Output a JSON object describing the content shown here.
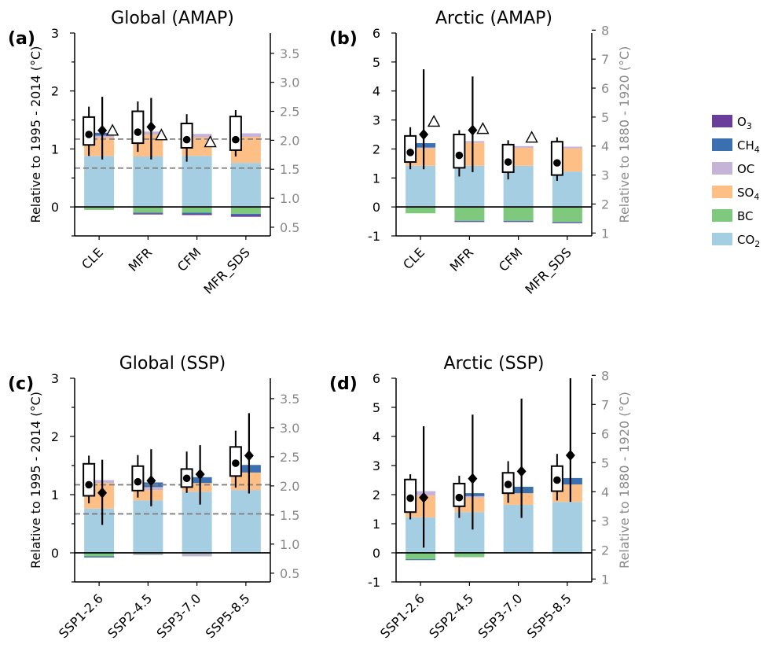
{
  "colors": {
    "O3": "#6a3d9a",
    "CH4": "#3a6fb0",
    "OC": "#c5b3d8",
    "SO4": "#fdbf86",
    "BC": "#7fc97f",
    "CO2": "#a6cee3"
  },
  "legend": [
    {
      "key": "O3",
      "base": "O",
      "sub": "3"
    },
    {
      "key": "CH4",
      "base": "CH",
      "sub": "4"
    },
    {
      "key": "OC",
      "base": "OC",
      "sub": ""
    },
    {
      "key": "SO4",
      "base": "SO",
      "sub": "4"
    },
    {
      "key": "BC",
      "base": "BC",
      "sub": ""
    },
    {
      "key": "CO2",
      "base": "CO",
      "sub": "2"
    }
  ],
  "axis_labels": {
    "left": "Relative to 1995 - 2014 (°C)",
    "right": "Relative to 1880 - 1920 (°C)"
  },
  "chart_data": [
    {
      "type": "bar",
      "panel": "(a)",
      "title": "Global (AMAP)",
      "categories": [
        "CLE",
        "MFR",
        "CFM",
        "MFR_SDS"
      ],
      "ylim": [
        -0.5,
        3.0
      ],
      "yticks": [
        0,
        1,
        2,
        3
      ],
      "y2ticks": [
        0.5,
        1.0,
        1.5,
        2.0,
        2.5,
        3.0,
        3.5
      ],
      "y2offset": 0.85,
      "hlines": [
        1.17,
        0.67
      ],
      "stack_positive": {
        "CO2": [
          0.88,
          0.87,
          0.88,
          0.76
        ],
        "SO4": [
          0.32,
          0.38,
          0.32,
          0.45
        ],
        "OC": [
          0.03,
          0.05,
          0.06,
          0.06
        ],
        "CH4": [
          0.05,
          0.0,
          0.0,
          0.0
        ]
      },
      "stack_negative": {
        "BC": [
          -0.05,
          -0.1,
          -0.1,
          -0.12
        ],
        "CH4": [
          0.0,
          -0.01,
          -0.02,
          -0.02
        ],
        "O3": [
          0.0,
          -0.02,
          -0.02,
          -0.03
        ]
      },
      "boxes": [
        {
          "whisker": [
            0.88,
            1.73
          ],
          "box": [
            1.07,
            1.55
          ],
          "mean": 1.25
        },
        {
          "whisker": [
            0.95,
            1.82
          ],
          "box": [
            1.1,
            1.65
          ],
          "mean": 1.29
        },
        {
          "whisker": [
            0.78,
            1.6
          ],
          "box": [
            1.02,
            1.44
          ],
          "mean": 1.16
        },
        {
          "whisker": [
            0.87,
            1.67
          ],
          "box": [
            0.98,
            1.56
          ],
          "mean": 1.16
        }
      ],
      "diamonds": [
        {
          "value": 1.32,
          "range": [
            0.82,
            1.9
          ]
        },
        {
          "value": 1.38,
          "range": [
            0.82,
            1.88
          ]
        },
        null,
        null
      ],
      "triangles": [
        1.32,
        1.24,
        1.12,
        null
      ]
    },
    {
      "type": "bar",
      "panel": "(b)",
      "title": "Arctic (AMAP)",
      "categories": [
        "CLE",
        "MFR",
        "CFM",
        "MFR_SDS"
      ],
      "ylim": [
        -1.0,
        6.0
      ],
      "yticks": [
        -1,
        0,
        1,
        2,
        3,
        4,
        5,
        6
      ],
      "y2ticks": [
        1,
        2,
        3,
        4,
        5,
        6,
        7,
        8
      ],
      "y2offset": 1.9,
      "hlines": [],
      "stack_positive": {
        "CO2": [
          1.42,
          1.42,
          1.42,
          1.22
        ],
        "SO4": [
          0.6,
          0.8,
          0.62,
          0.8
        ],
        "OC": [
          0.03,
          0.05,
          0.06,
          0.06
        ],
        "CH4": [
          0.15,
          0.0,
          0.0,
          0.0
        ]
      },
      "stack_negative": {
        "BC": [
          -0.22,
          -0.48,
          -0.48,
          -0.52
        ],
        "CH4": [
          0.0,
          -0.02,
          -0.02,
          -0.02
        ],
        "O3": [
          0.0,
          -0.02,
          -0.02,
          -0.02
        ]
      },
      "boxes": [
        {
          "whisker": [
            1.3,
            2.75
          ],
          "box": [
            1.55,
            2.45
          ],
          "mean": 1.88
        },
        {
          "whisker": [
            1.05,
            2.65
          ],
          "box": [
            1.35,
            2.5
          ],
          "mean": 1.78
        },
        {
          "whisker": [
            0.95,
            2.3
          ],
          "box": [
            1.2,
            2.15
          ],
          "mean": 1.55
        },
        {
          "whisker": [
            0.9,
            2.4
          ],
          "box": [
            1.1,
            2.25
          ],
          "mean": 1.52
        }
      ],
      "diamonds": [
        {
          "value": 2.5,
          "range": [
            1.3,
            4.75
          ]
        },
        {
          "value": 2.65,
          "range": [
            1.2,
            4.5
          ]
        },
        null,
        null
      ],
      "triangles": [
        2.95,
        2.7,
        2.4,
        null
      ]
    },
    {
      "type": "bar",
      "panel": "(c)",
      "title": "Global (SSP)",
      "categories": [
        "SSP1-2.6",
        "SSP2-4.5",
        "SSP3-7.0",
        "SSP5-8.5"
      ],
      "ylim": [
        -0.5,
        3.0
      ],
      "yticks": [
        0,
        1,
        2,
        3
      ],
      "y2ticks": [
        0.5,
        1.0,
        1.5,
        2.0,
        2.5,
        3.0,
        3.5
      ],
      "y2offset": 0.85,
      "hlines": [
        1.17,
        0.67
      ],
      "stack_positive": {
        "CO2": [
          0.76,
          0.9,
          1.05,
          1.08
        ],
        "SO4": [
          0.44,
          0.18,
          0.15,
          0.3
        ],
        "OC": [
          0.05,
          0.05,
          0.0,
          0.0
        ],
        "CH4": [
          0.0,
          0.08,
          0.1,
          0.13
        ]
      },
      "stack_negative": {
        "BC": [
          -0.06,
          -0.02,
          -0.02,
          -0.01
        ],
        "CH4": [
          -0.02,
          0.0,
          0.0,
          0.0
        ],
        "OC": [
          0.0,
          -0.02,
          -0.04,
          0.0
        ],
        "O3": [
          0.0,
          0.0,
          0.0,
          0.0
        ]
      },
      "boxes": [
        {
          "whisker": [
            0.85,
            1.67
          ],
          "box": [
            0.98,
            1.53
          ],
          "mean": 1.17
        },
        {
          "whisker": [
            0.95,
            1.68
          ],
          "box": [
            1.07,
            1.49
          ],
          "mean": 1.22
        },
        {
          "whisker": [
            1.03,
            1.74
          ],
          "box": [
            1.13,
            1.44
          ],
          "mean": 1.28
        },
        {
          "whisker": [
            1.12,
            2.1
          ],
          "box": [
            1.32,
            1.82
          ],
          "mean": 1.54
        }
      ],
      "diamonds": [
        {
          "value": 1.03,
          "range": [
            0.48,
            1.6
          ]
        },
        {
          "value": 1.24,
          "range": [
            0.8,
            1.78
          ]
        },
        {
          "value": 1.35,
          "range": [
            0.83,
            1.85
          ]
        },
        {
          "value": 1.67,
          "range": [
            1.02,
            2.4
          ]
        }
      ],
      "triangles": [
        null,
        null,
        null,
        null
      ]
    },
    {
      "type": "bar",
      "panel": "(d)",
      "title": "Arctic (SSP)",
      "categories": [
        "SSP1-2.6",
        "SSP2-4.5",
        "SSP3-7.0",
        "SSP5-8.5"
      ],
      "ylim": [
        -1.0,
        6.0
      ],
      "yticks": [
        -1,
        0,
        1,
        2,
        3,
        4,
        5,
        6
      ],
      "y2ticks": [
        1,
        2,
        3,
        4,
        5,
        6,
        7,
        8
      ],
      "y2offset": 1.9,
      "hlines": [],
      "stack_positive": {
        "CO2": [
          1.22,
          1.4,
          1.65,
          1.75
        ],
        "SO4": [
          0.75,
          0.5,
          0.4,
          0.6
        ],
        "OC": [
          0.15,
          0.05,
          0.0,
          0.0
        ],
        "CH4": [
          0.0,
          0.1,
          0.22,
          0.22
        ]
      },
      "stack_negative": {
        "BC": [
          -0.22,
          -0.15,
          -0.02,
          -0.03
        ],
        "CH4": [
          -0.03,
          0.0,
          0.0,
          0.0
        ],
        "O3": [
          0.0,
          0.0,
          0.0,
          0.0
        ]
      },
      "boxes": [
        {
          "whisker": [
            1.15,
            2.7
          ],
          "box": [
            1.4,
            2.52
          ],
          "mean": 1.88
        },
        {
          "whisker": [
            1.2,
            2.65
          ],
          "box": [
            1.6,
            2.38
          ],
          "mean": 1.9
        },
        {
          "whisker": [
            1.72,
            3.15
          ],
          "box": [
            2.05,
            2.75
          ],
          "mean": 2.35
        },
        {
          "whisker": [
            1.8,
            3.4
          ],
          "box": [
            2.12,
            2.98
          ],
          "mean": 2.5
        }
      ],
      "diamonds": [
        {
          "value": 1.9,
          "range": [
            0.18,
            4.35
          ]
        },
        {
          "value": 2.55,
          "range": [
            0.8,
            4.75
          ]
        },
        {
          "value": 2.8,
          "range": [
            1.2,
            5.3
          ]
        },
        {
          "value": 3.35,
          "range": [
            1.75,
            6.0
          ]
        }
      ],
      "triangles": [
        null,
        null,
        null,
        null
      ]
    }
  ]
}
